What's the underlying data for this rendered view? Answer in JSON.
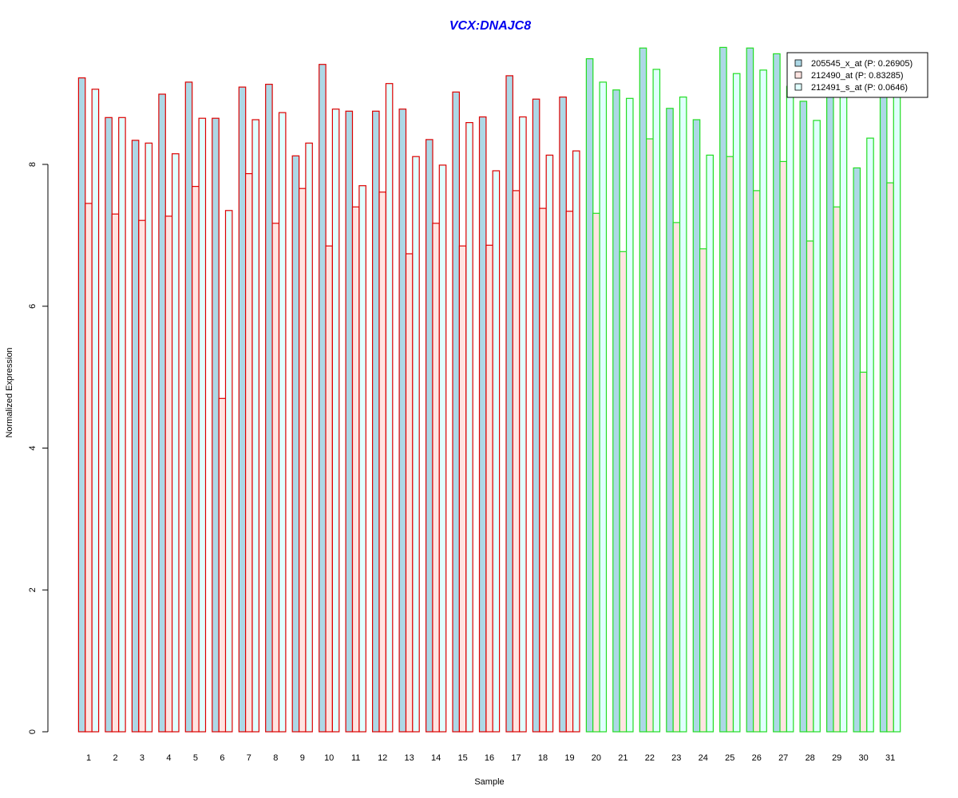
{
  "chart_data": {
    "type": "bar",
    "title": "VCX:DNAJC8",
    "xlabel": "Sample",
    "ylabel": "Normalized Expression",
    "ylim": [
      0,
      9.8
    ],
    "yticks": [
      0,
      2,
      4,
      6,
      8
    ],
    "categories": [
      "1",
      "2",
      "3",
      "4",
      "5",
      "6",
      "7",
      "8",
      "9",
      "10",
      "11",
      "12",
      "13",
      "14",
      "15",
      "16",
      "17",
      "18",
      "19",
      "20",
      "21",
      "22",
      "23",
      "24",
      "25",
      "26",
      "27",
      "28",
      "29",
      "30",
      "31"
    ],
    "groups": {
      "red_samples": 19,
      "green_samples": 12
    },
    "colors": {
      "series_fill": [
        "#add8e6",
        "#ffe4e1",
        "#e0ffff"
      ],
      "group_border": [
        "#dd0000",
        "#22dd22"
      ],
      "title": "#0000ee"
    },
    "legend": {
      "placement": "top-right",
      "entries": [
        "205545_x_at (P: 0.26905)",
        "212490_at (P: 0.83285)",
        "212491_s_at (P: 0.0646)"
      ]
    },
    "series": [
      {
        "name": "205545_x_at",
        "values": [
          9.22,
          8.66,
          8.34,
          8.99,
          9.16,
          8.65,
          9.09,
          9.13,
          8.12,
          9.41,
          8.75,
          8.75,
          8.78,
          8.35,
          9.02,
          8.67,
          9.25,
          8.92,
          8.95,
          9.49,
          9.05,
          9.64,
          8.79,
          8.63,
          9.65,
          9.64,
          9.56,
          8.89,
          9.2,
          7.95,
          9.2
        ]
      },
      {
        "name": "212490_at",
        "values": [
          7.45,
          7.3,
          7.21,
          7.27,
          7.69,
          4.7,
          7.87,
          7.17,
          7.66,
          6.85,
          7.4,
          7.61,
          6.74,
          7.17,
          6.85,
          6.86,
          7.63,
          7.38,
          7.34,
          7.31,
          6.77,
          8.36,
          7.18,
          6.81,
          8.11,
          7.63,
          8.04,
          6.92,
          7.4,
          5.07,
          7.74
        ]
      },
      {
        "name": "212491_s_at",
        "values": [
          9.06,
          8.66,
          8.3,
          8.15,
          8.65,
          7.35,
          8.63,
          8.73,
          8.3,
          8.78,
          7.7,
          9.14,
          8.11,
          7.99,
          8.59,
          7.91,
          8.67,
          8.13,
          8.19,
          9.16,
          8.93,
          9.34,
          8.95,
          8.13,
          9.28,
          9.33,
          9.1,
          8.62,
          9.0,
          8.37,
          9.1
        ]
      }
    ]
  }
}
